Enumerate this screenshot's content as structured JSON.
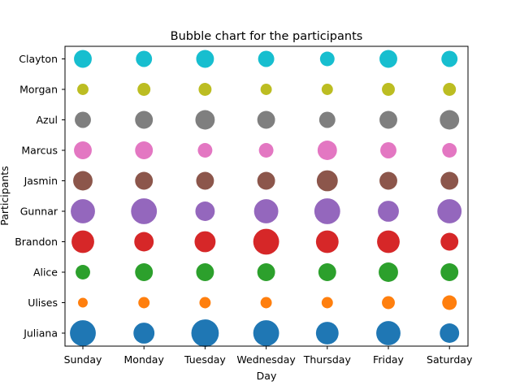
{
  "chart_data": {
    "type": "scatter",
    "title": "Bubble chart for the participants",
    "xlabel": "Day",
    "ylabel": "Participants",
    "categories": [
      "Sunday",
      "Monday",
      "Tuesday",
      "Wednesday",
      "Thursday",
      "Friday",
      "Saturday"
    ],
    "participants": [
      "Juliana",
      "Ulises",
      "Alice",
      "Brandon",
      "Gunnar",
      "Jasmin",
      "Marcus",
      "Azul",
      "Morgan",
      "Clayton"
    ],
    "series": [
      {
        "name": "Juliana",
        "color": "#1f77b4",
        "values": [
          16,
          13,
          17,
          16,
          14,
          15,
          12
        ]
      },
      {
        "name": "Ulises",
        "color": "#ff7f0e",
        "values": [
          6,
          7,
          7,
          7,
          7,
          8,
          9
        ]
      },
      {
        "name": "Alice",
        "color": "#2ca02c",
        "values": [
          9,
          11,
          11,
          11,
          11,
          12,
          11
        ]
      },
      {
        "name": "Brandon",
        "color": "#d62728",
        "values": [
          14,
          12,
          13,
          16,
          14,
          14,
          11
        ]
      },
      {
        "name": "Gunnar",
        "color": "#9467bd",
        "values": [
          15,
          16,
          12,
          15,
          16,
          13,
          15
        ]
      },
      {
        "name": "Jasmin",
        "color": "#8c564b",
        "values": [
          12,
          11,
          11,
          11,
          13,
          11,
          11
        ]
      },
      {
        "name": "Marcus",
        "color": "#e377c2",
        "values": [
          11,
          11,
          9,
          9,
          12,
          10,
          9
        ]
      },
      {
        "name": "Azul",
        "color": "#7f7f7f",
        "values": [
          10,
          11,
          12,
          11,
          10,
          11,
          12
        ]
      },
      {
        "name": "Morgan",
        "color": "#bcbd22",
        "values": [
          7,
          8,
          8,
          7,
          7,
          8,
          8
        ]
      },
      {
        "name": "Clayton",
        "color": "#17becf",
        "values": [
          11,
          10,
          11,
          10,
          9,
          11,
          10
        ]
      }
    ],
    "grid": false,
    "legend": "none"
  }
}
